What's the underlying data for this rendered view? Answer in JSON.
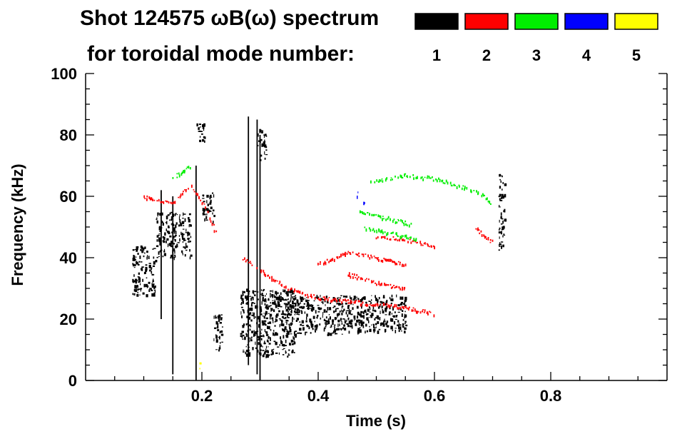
{
  "chart_data": {
    "type": "heatmap",
    "title_line1": "Shot 124575 ωB(ω) spectrum",
    "title_line2": "for toroidal mode number:",
    "xlabel": "Time (s)",
    "ylabel": "Frequency (kHz)",
    "xlim": [
      0.0,
      1.0
    ],
    "ylim": [
      0,
      100
    ],
    "xticks": [
      0.2,
      0.4,
      0.6,
      0.8
    ],
    "xtick_labels": [
      "0.2",
      "0.4",
      "0.6",
      "0.8"
    ],
    "yticks": [
      0,
      20,
      40,
      60,
      80,
      100
    ],
    "ytick_labels": [
      "0",
      "20",
      "40",
      "60",
      "80",
      "100"
    ],
    "legend": [
      {
        "label": "1",
        "color": "#000000"
      },
      {
        "label": "2",
        "color": "#ff0000"
      },
      {
        "label": "3",
        "color": "#00ee00"
      },
      {
        "label": "4",
        "color": "#0000ff"
      },
      {
        "label": "5",
        "color": "#ffff00"
      }
    ],
    "features": [
      {
        "mode": "1",
        "kind": "blob",
        "t": [
          0.08,
          0.12
        ],
        "f": [
          28,
          44
        ]
      },
      {
        "mode": "1",
        "kind": "blob",
        "t": [
          0.12,
          0.18
        ],
        "f": [
          40,
          55
        ]
      },
      {
        "mode": "1",
        "kind": "blob",
        "t": [
          0.19,
          0.205
        ],
        "f": [
          78,
          84
        ]
      },
      {
        "mode": "1",
        "kind": "blob",
        "t": [
          0.2,
          0.22
        ],
        "f": [
          52,
          62
        ]
      },
      {
        "mode": "1",
        "kind": "blob",
        "t": [
          0.22,
          0.235
        ],
        "f": [
          10,
          22
        ]
      },
      {
        "mode": "1",
        "kind": "blob",
        "t": [
          0.265,
          0.36
        ],
        "f": [
          8,
          30
        ]
      },
      {
        "mode": "1",
        "kind": "blob",
        "t": [
          0.34,
          0.45
        ],
        "f": [
          15,
          28
        ]
      },
      {
        "mode": "1",
        "kind": "blob",
        "t": [
          0.45,
          0.55
        ],
        "f": [
          16,
          28
        ]
      },
      {
        "mode": "1",
        "kind": "blob",
        "t": [
          0.295,
          0.31
        ],
        "f": [
          72,
          82
        ]
      },
      {
        "mode": "1",
        "kind": "blob",
        "t": [
          0.71,
          0.72
        ],
        "f": [
          42,
          68
        ]
      },
      {
        "mode": "1",
        "kind": "streak",
        "t": 0.13,
        "f": [
          20,
          62
        ]
      },
      {
        "mode": "1",
        "kind": "streak",
        "t": 0.15,
        "f": [
          2,
          60
        ]
      },
      {
        "mode": "1",
        "kind": "streak",
        "t": 0.19,
        "f": [
          0,
          70
        ]
      },
      {
        "mode": "1",
        "kind": "streak",
        "t": 0.28,
        "f": [
          5,
          86
        ]
      },
      {
        "mode": "1",
        "kind": "streak",
        "t": 0.295,
        "f": [
          2,
          85
        ]
      },
      {
        "mode": "1",
        "kind": "streak",
        "t": 0.3,
        "f": [
          0,
          80
        ]
      },
      {
        "mode": "2",
        "kind": "curve",
        "t": [
          0.1,
          0.15,
          0.18,
          0.21,
          0.23
        ],
        "f": [
          60,
          58,
          64,
          55,
          45
        ]
      },
      {
        "mode": "2",
        "kind": "curve",
        "t": [
          0.27,
          0.3,
          0.35,
          0.4,
          0.45,
          0.5,
          0.55,
          0.6
        ],
        "f": [
          40,
          36,
          30,
          27,
          26,
          25,
          24,
          22
        ]
      },
      {
        "mode": "2",
        "kind": "curve",
        "t": [
          0.4,
          0.45,
          0.5,
          0.55
        ],
        "f": [
          38,
          42,
          40,
          38
        ]
      },
      {
        "mode": "2",
        "kind": "curve",
        "t": [
          0.45,
          0.5,
          0.55
        ],
        "f": [
          35,
          32,
          30
        ]
      },
      {
        "mode": "2",
        "kind": "curve",
        "t": [
          0.5,
          0.55,
          0.6
        ],
        "f": [
          47,
          46,
          44
        ]
      },
      {
        "mode": "2",
        "kind": "curve",
        "t": [
          0.67,
          0.7
        ],
        "f": [
          50,
          45
        ]
      },
      {
        "mode": "3",
        "kind": "curve",
        "t": [
          0.15,
          0.18
        ],
        "f": [
          66,
          70
        ]
      },
      {
        "mode": "3",
        "kind": "curve",
        "t": [
          0.49,
          0.55,
          0.6,
          0.65,
          0.68,
          0.7
        ],
        "f": [
          65,
          67,
          66,
          63,
          61,
          57
        ]
      },
      {
        "mode": "3",
        "kind": "curve",
        "t": [
          0.47,
          0.52,
          0.56
        ],
        "f": [
          55,
          53,
          51
        ]
      },
      {
        "mode": "3",
        "kind": "curve",
        "t": [
          0.48,
          0.53,
          0.57
        ],
        "f": [
          50,
          48,
          46
        ]
      },
      {
        "mode": "4",
        "kind": "blob",
        "t": [
          0.462,
          0.468
        ],
        "f": [
          60,
          62
        ]
      },
      {
        "mode": "4",
        "kind": "blob",
        "t": [
          0.475,
          0.48
        ],
        "f": [
          57,
          59
        ]
      },
      {
        "mode": "5",
        "kind": "blob",
        "t": [
          0.193,
          0.198
        ],
        "f": [
          4,
          6
        ]
      }
    ]
  }
}
